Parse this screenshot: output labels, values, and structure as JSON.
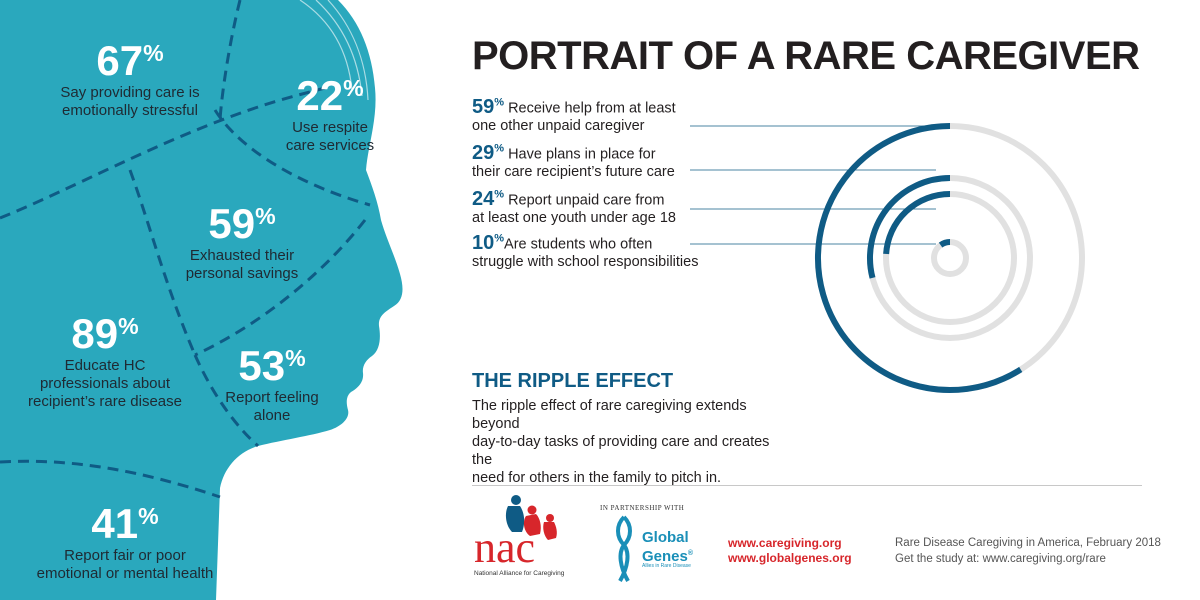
{
  "colors": {
    "teal": "#2aa8bd",
    "navy": "#0f5b85",
    "ring_gray": "#e1e1e1",
    "red": "#d7262b"
  },
  "title": "PORTRAIT OF A RARE CAREGIVER",
  "head_stats": [
    {
      "value": "67",
      "pct": "%",
      "label_lines": [
        "Say providing care is",
        "emotionally stressful"
      ]
    },
    {
      "value": "22",
      "pct": "%",
      "label_lines": [
        "Use respite",
        "care services"
      ]
    },
    {
      "value": "59",
      "pct": "%",
      "label_lines": [
        "Exhausted their",
        "personal savings"
      ]
    },
    {
      "value": "89",
      "pct": "%",
      "label_lines": [
        "Educate HC",
        "professionals about",
        "recipient’s rare disease"
      ]
    },
    {
      "value": "53",
      "pct": "%",
      "label_lines": [
        "Report feeling",
        "alone"
      ]
    },
    {
      "value": "41",
      "pct": "%",
      "label_lines": [
        "Report fair or poor",
        "emotional or mental health"
      ]
    }
  ],
  "ripple_facts": [
    {
      "value": "59",
      "pct": "%",
      "lines": [
        "Receive help from at least",
        "one other unpaid caregiver"
      ]
    },
    {
      "value": "29",
      "pct": "%",
      "lines": [
        "Have plans in place for",
        "their care recipient’s future care"
      ]
    },
    {
      "value": "24",
      "pct": "%",
      "lines": [
        "Report unpaid care from",
        "at least one youth  under age 18"
      ]
    },
    {
      "value": "10",
      "pct": "%",
      "lines": [
        "Are students who often",
        "struggle with school responsibilities"
      ]
    }
  ],
  "chart_data": {
    "type": "radial-bar",
    "categories": [
      "Receive help from at least one other unpaid caregiver",
      "Have plans in place for their care recipient’s future care",
      "Report unpaid care from at least one youth under age 18",
      "Are students who often struggle with school responsibilities"
    ],
    "values": [
      59,
      29,
      24,
      10
    ],
    "ylim": [
      0,
      100
    ]
  },
  "ripple": {
    "title": "THE RIPPLE EFFECT",
    "text_lines": [
      "The ripple effect of rare caregiving extends beyond",
      "day-to-day tasks of providing care and creates the",
      "need for others in the family to pitch in."
    ]
  },
  "footer": {
    "nac_letters": "nac",
    "nac_caption": "National Alliance for Caregiving",
    "partner_text": "IN PARTNERSHIP WITH",
    "gg_name_lines": [
      "Global",
      "Genes"
    ],
    "gg_mark": "®",
    "gg_tagline": "Allies in Rare Disease",
    "urls": [
      "www.caregiving.org",
      "www.globalgenes.org"
    ],
    "citation_lines": [
      "Rare Disease Caregiving in America, February 2018",
      "Get the study at: www.caregiving.org/rare"
    ]
  }
}
